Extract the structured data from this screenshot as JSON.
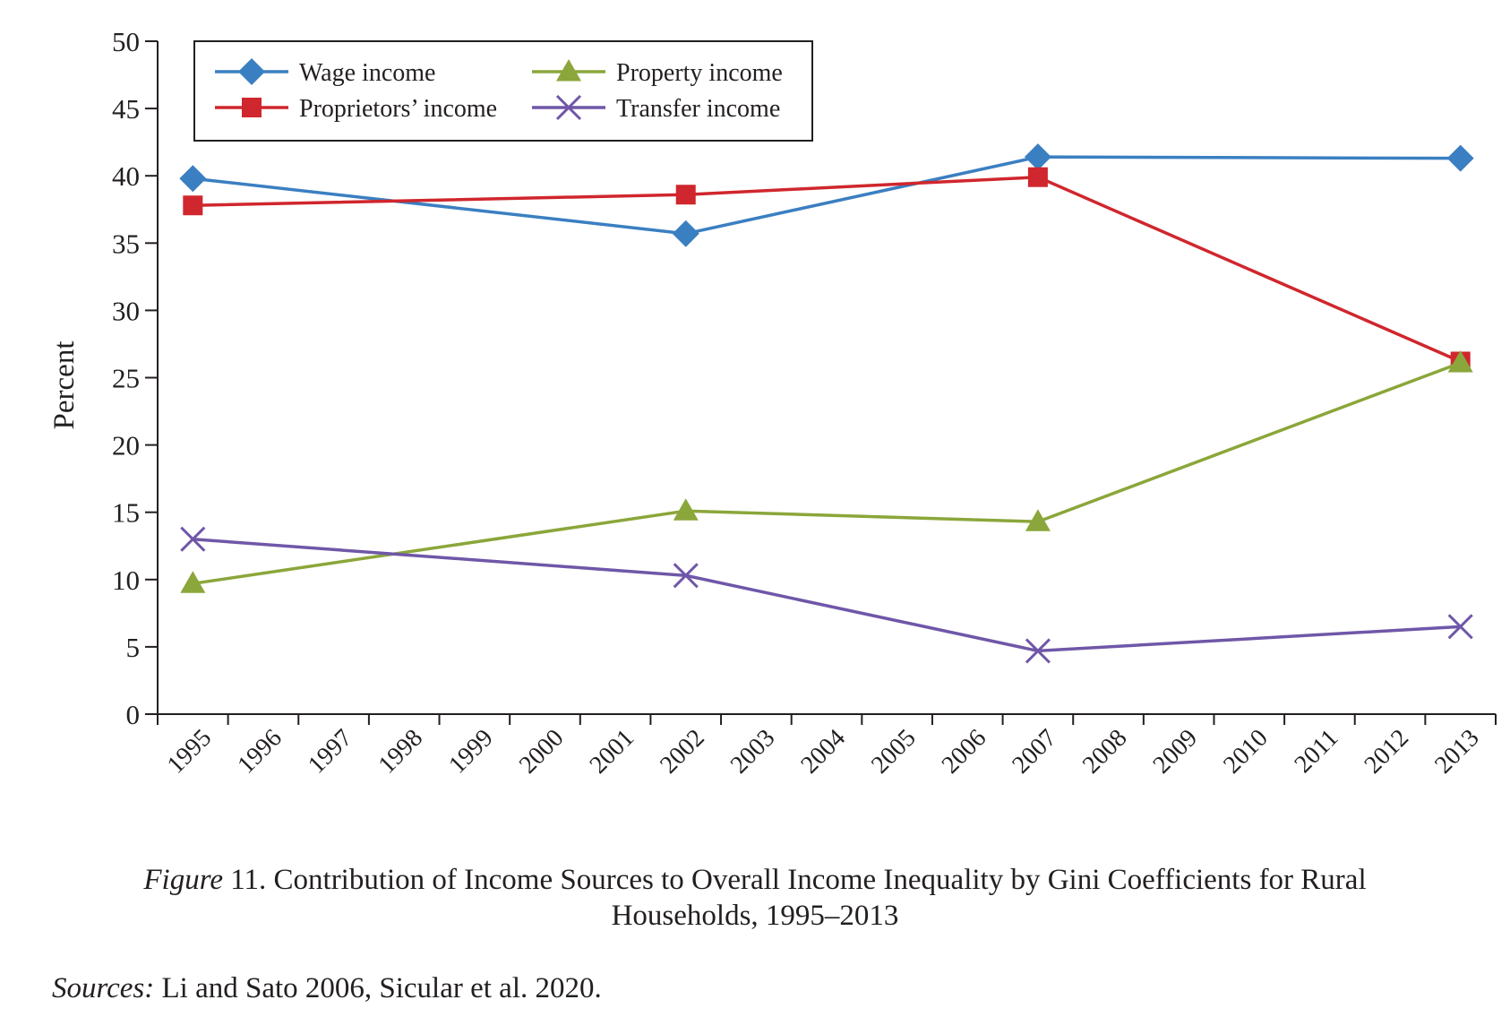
{
  "chart_data": {
    "type": "line",
    "ylabel": "Percent",
    "ylim": [
      0,
      50
    ],
    "yticks": [
      0,
      5,
      10,
      15,
      20,
      25,
      30,
      35,
      40,
      45,
      50
    ],
    "x_categories": [
      "1995",
      "1996",
      "1997",
      "1998",
      "1999",
      "2000",
      "2001",
      "2002",
      "2003",
      "2004",
      "2005",
      "2006",
      "2007",
      "2008",
      "2009",
      "2010",
      "2011",
      "2012",
      "2013"
    ],
    "legend_position": "top-left",
    "series": [
      {
        "name": "Wage income",
        "color": "#3a7fc1",
        "marker": "diamond",
        "x": [
          "1995",
          "2002",
          "2007",
          "2013"
        ],
        "values": [
          39.8,
          35.7,
          41.4,
          41.3
        ]
      },
      {
        "name": "Proprietors’ income",
        "color": "#d0262d",
        "marker": "square",
        "x": [
          "1995",
          "2002",
          "2007",
          "2013"
        ],
        "values": [
          37.8,
          38.6,
          39.9,
          26.2
        ]
      },
      {
        "name": "Property income",
        "color": "#8ba63a",
        "marker": "triangle",
        "x": [
          "1995",
          "2002",
          "2007",
          "2013"
        ],
        "values": [
          9.7,
          15.1,
          14.3,
          26.1
        ]
      },
      {
        "name": "Transfer income",
        "color": "#6f57a8",
        "marker": "x",
        "x": [
          "1995",
          "2002",
          "2007",
          "2013"
        ],
        "values": [
          13.0,
          10.3,
          4.7,
          6.5
        ]
      }
    ]
  },
  "caption": {
    "figure_word": "Figure",
    "line1": " 11. Contribution of Income Sources to Overall Income Inequality by Gini Coefficients for Rural",
    "line2": "Households, 1995–2013"
  },
  "sources": {
    "label": "Sources:",
    "text": " Li and Sato 2006, Sicular et al. 2020."
  }
}
